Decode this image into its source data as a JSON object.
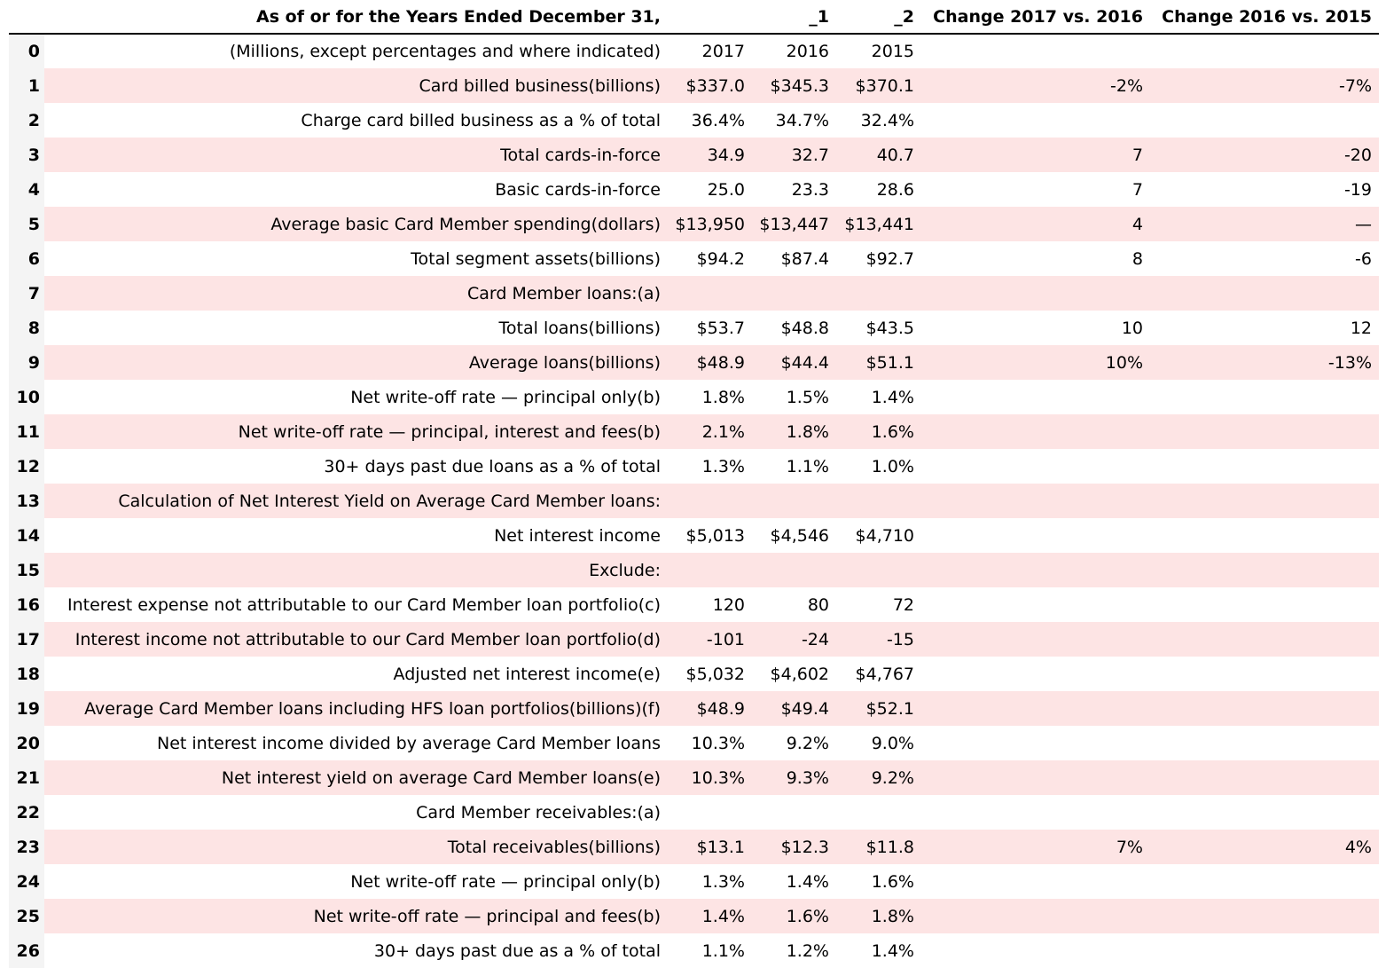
{
  "chart_data": {
    "type": "table",
    "columns": [
      "",
      "As of or for the Years Ended December 31,",
      "_1",
      "_2",
      "Change 2017 vs. 2016",
      "Change 2016 vs. 2015"
    ],
    "rows": [
      [
        "0",
        "(Millions, except percentages and where indicated)",
        "2017",
        "2016",
        "2015",
        "",
        ""
      ],
      [
        "1",
        "Card billed business(billions)",
        "$337.0",
        "$345.3",
        "$370.1",
        "-2%",
        "-7%"
      ],
      [
        "2",
        "Charge card billed business as a % of total",
        "36.4%",
        "34.7%",
        "32.4%",
        "",
        ""
      ],
      [
        "3",
        "Total cards-in-force",
        "34.9",
        "32.7",
        "40.7",
        "7",
        "-20"
      ],
      [
        "4",
        "Basic cards-in-force",
        "25.0",
        "23.3",
        "28.6",
        "7",
        "-19"
      ],
      [
        "5",
        "Average basic Card Member spending(dollars)",
        "$13,950",
        "$13,447",
        "$13,441",
        "4",
        "—"
      ],
      [
        "6",
        "Total segment assets(billions)",
        "$94.2",
        "$87.4",
        "$92.7",
        "8",
        "-6"
      ],
      [
        "7",
        "Card Member loans:(a)",
        "",
        "",
        "",
        "",
        ""
      ],
      [
        "8",
        "Total loans(billions)",
        "$53.7",
        "$48.8",
        "$43.5",
        "10",
        "12"
      ],
      [
        "9",
        "Average loans(billions)",
        "$48.9",
        "$44.4",
        "$51.1",
        "10%",
        "-13%"
      ],
      [
        "10",
        "Net write-off rate — principal only(b)",
        "1.8%",
        "1.5%",
        "1.4%",
        "",
        ""
      ],
      [
        "11",
        "Net write-off rate — principal, interest and fees(b)",
        "2.1%",
        "1.8%",
        "1.6%",
        "",
        ""
      ],
      [
        "12",
        "30+ days past due loans as a % of total",
        "1.3%",
        "1.1%",
        "1.0%",
        "",
        ""
      ],
      [
        "13",
        "Calculation of Net Interest Yield on Average Card Member loans:",
        "",
        "",
        "",
        "",
        ""
      ],
      [
        "14",
        "Net interest income",
        "$5,013",
        "$4,546",
        "$4,710",
        "",
        ""
      ],
      [
        "15",
        "Exclude:",
        "",
        "",
        "",
        "",
        ""
      ],
      [
        "16",
        "Interest expense not attributable to our Card Member loan portfolio(c)",
        "120",
        "80",
        "72",
        "",
        ""
      ],
      [
        "17",
        "Interest income not attributable to our Card Member loan portfolio(d)",
        "-101",
        "-24",
        "-15",
        "",
        ""
      ],
      [
        "18",
        "Adjusted net interest income(e)",
        "$5,032",
        "$4,602",
        "$4,767",
        "",
        ""
      ],
      [
        "19",
        "Average Card Member loans including HFS loan portfolios(billions)(f)",
        "$48.9",
        "$49.4",
        "$52.1",
        "",
        ""
      ],
      [
        "20",
        "Net interest income divided by average Card Member loans",
        "10.3%",
        "9.2%",
        "9.0%",
        "",
        ""
      ],
      [
        "21",
        "Net interest yield on average Card Member loans(e)",
        "10.3%",
        "9.3%",
        "9.2%",
        "",
        ""
      ],
      [
        "22",
        "Card Member receivables:(a)",
        "",
        "",
        "",
        "",
        ""
      ],
      [
        "23",
        "Total receivables(billions)",
        "$13.1",
        "$12.3",
        "$11.8",
        "7%",
        "4%"
      ],
      [
        "24",
        "Net write-off rate — principal only(b)",
        "1.3%",
        "1.4%",
        "1.6%",
        "",
        ""
      ],
      [
        "25",
        "Net write-off rate — principal and fees(b)",
        "1.4%",
        "1.6%",
        "1.8%",
        "",
        ""
      ],
      [
        "26",
        "30+ days past due as a % of total",
        "1.1%",
        "1.2%",
        "1.4%",
        "",
        ""
      ]
    ],
    "colors": {
      "stripe": "#fde4e4",
      "index_bg": "#f4f4f4",
      "rule": "#000000"
    }
  }
}
